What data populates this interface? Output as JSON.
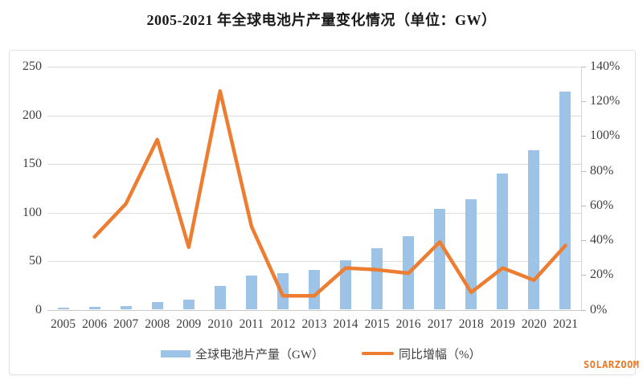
{
  "title": "2005-2021 年全球电池片产量变化情况（单位：GW）",
  "watermark": "SOLARZOOM",
  "colors": {
    "bar": "#9dc3e6",
    "line": "#ed7d31",
    "grid": "#dcdcdc",
    "axis_text": "#3f3f3f",
    "watermark": "#e87722",
    "title_text": "#1a1a1a"
  },
  "legend": {
    "items": [
      {
        "label": "全球电池片产量（GW）",
        "marker": "bar-swatch"
      },
      {
        "label": "同比增幅（%）",
        "marker": "line-swatch"
      }
    ]
  },
  "chart_data": {
    "type": "bar",
    "subtype": "bar+line combo, dual axis",
    "title": "2005-2021 年全球电池片产量变化情况（单位：GW）",
    "categories": [
      "2005",
      "2006",
      "2007",
      "2008",
      "2009",
      "2010",
      "2011",
      "2012",
      "2013",
      "2014",
      "2015",
      "2016",
      "2017",
      "2018",
      "2019",
      "2020",
      "2021"
    ],
    "series": [
      {
        "name": "全球电池片产量（GW）",
        "type": "bar",
        "axis": "left",
        "values": [
          1.8,
          2.5,
          4.1,
          7.9,
          10.7,
          24,
          35.5,
          38,
          41,
          50.5,
          63,
          76,
          104,
          114,
          140,
          164,
          224
        ]
      },
      {
        "name": "同比增幅（%）",
        "type": "line",
        "axis": "right",
        "values": [
          null,
          42,
          61,
          98,
          36,
          126,
          48,
          8,
          8,
          24,
          23,
          21,
          39,
          10,
          24,
          17,
          37
        ]
      }
    ],
    "left_axis": {
      "min": 0,
      "max": 250,
      "step": 50,
      "labels": [
        "0",
        "50",
        "100",
        "150",
        "200",
        "250"
      ]
    },
    "right_axis": {
      "min": 0,
      "max": 140,
      "step": 20,
      "labels": [
        "0%",
        "20%",
        "40%",
        "60%",
        "80%",
        "100%",
        "120%",
        "140%"
      ]
    },
    "xlabel": "",
    "ylabel": "",
    "grid": true,
    "legend_position": "bottom"
  }
}
